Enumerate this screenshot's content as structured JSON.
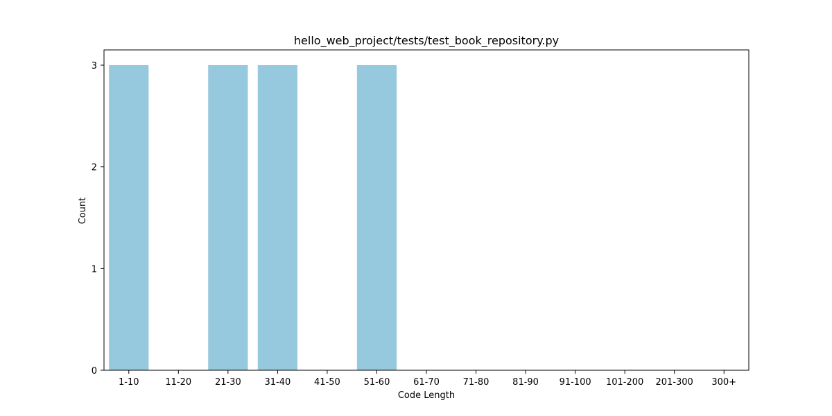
{
  "chart_data": {
    "type": "bar",
    "title": "hello_web_project/tests/test_book_repository.py",
    "xlabel": "Code Length",
    "ylabel": "Count",
    "categories": [
      "1-10",
      "11-20",
      "21-30",
      "31-40",
      "41-50",
      "51-60",
      "61-70",
      "71-80",
      "81-90",
      "91-100",
      "101-200",
      "201-300",
      "300+"
    ],
    "values": [
      3,
      0,
      3,
      3,
      0,
      3,
      0,
      0,
      0,
      0,
      0,
      0,
      0
    ],
    "ylim": [
      0,
      3.15
    ],
    "yticks": [
      0,
      1,
      2,
      3
    ],
    "bar_color": "#96c9de",
    "grid": false,
    "legend": "none"
  }
}
